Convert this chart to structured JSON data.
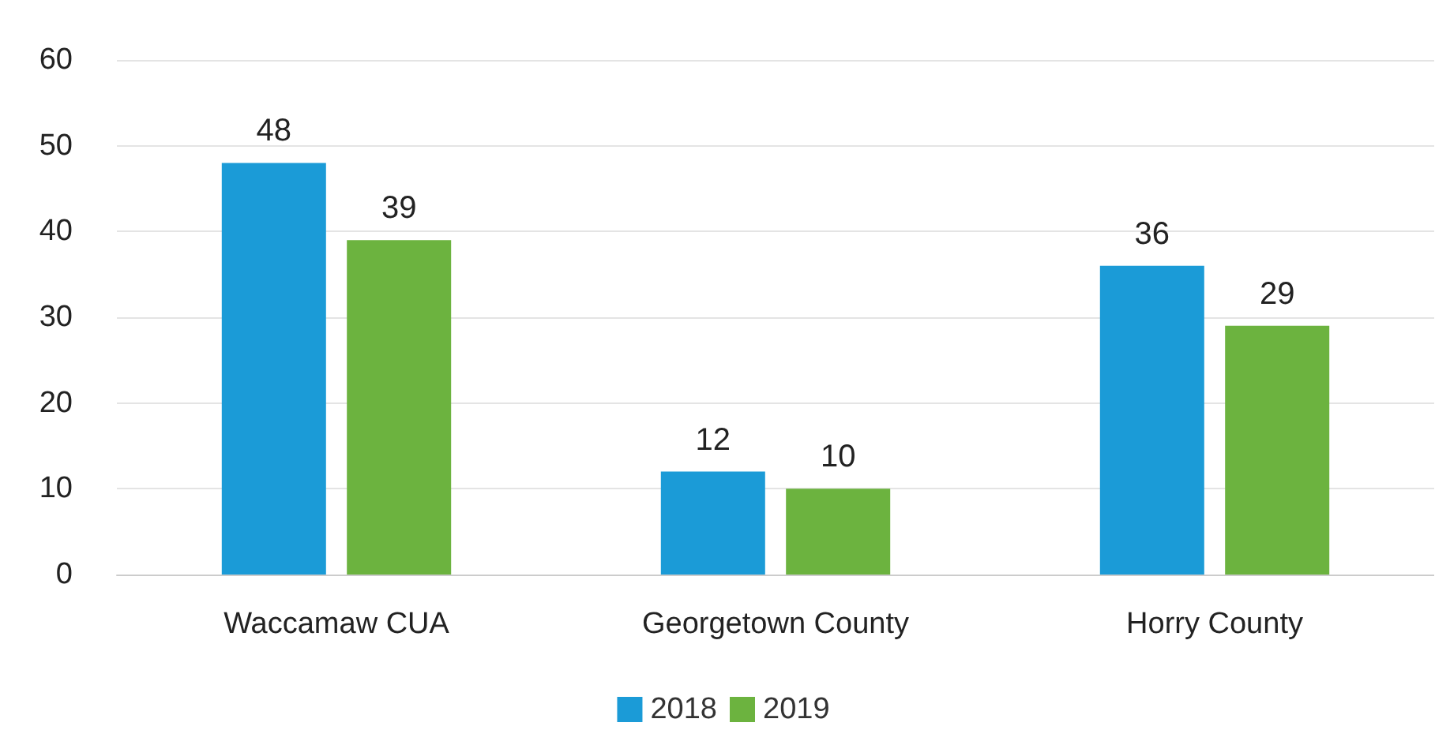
{
  "chart_data": {
    "type": "bar",
    "categories": [
      "Waccamaw CUA",
      "Georgetown County",
      "Horry County"
    ],
    "series": [
      {
        "name": "2018",
        "color": "#1b9bd7",
        "values": [
          48,
          12,
          36
        ]
      },
      {
        "name": "2019",
        "color": "#6cb33f",
        "values": [
          39,
          10,
          29
        ]
      }
    ],
    "ylim": [
      0,
      60
    ],
    "yticks": [
      0,
      10,
      20,
      30,
      40,
      50,
      60
    ],
    "grid": "y",
    "legend": "bottom",
    "data_labels": true
  }
}
